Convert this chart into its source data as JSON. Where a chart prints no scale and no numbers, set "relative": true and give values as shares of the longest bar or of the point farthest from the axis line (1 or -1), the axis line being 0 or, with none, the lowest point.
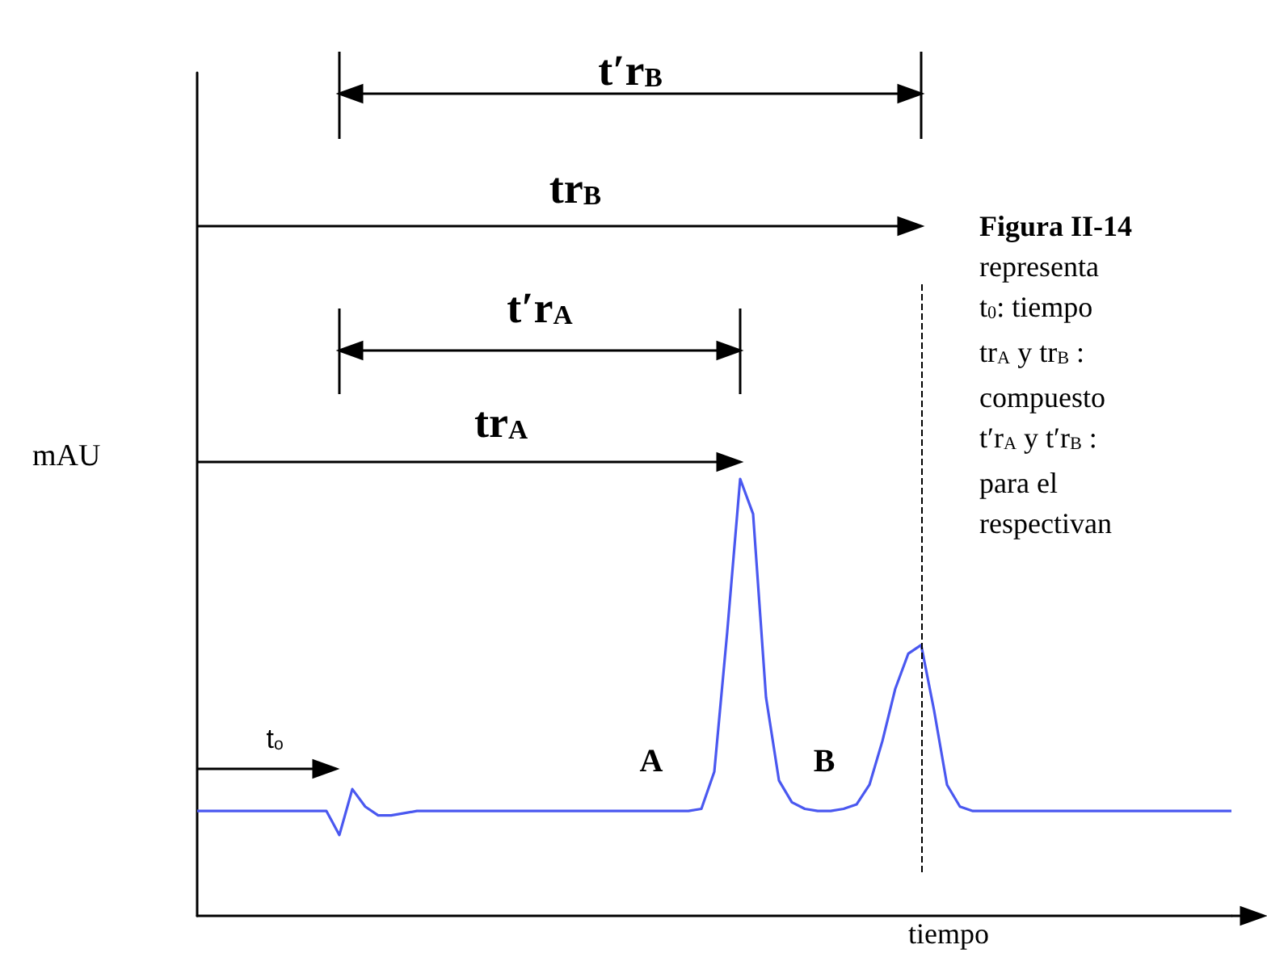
{
  "chart_data": {
    "type": "line",
    "relative": true,
    "color": "#4a58f0",
    "marker": "none",
    "line_style": "solid",
    "xlabel": "tiempo",
    "ylabel": "mAU",
    "categories": [
      null,
      null,
      null,
      null,
      null,
      null,
      null,
      null,
      null,
      null,
      null,
      null,
      null,
      null,
      null,
      null,
      null,
      null,
      null,
      null,
      null,
      null,
      null,
      null,
      null,
      null,
      null,
      null,
      null,
      null,
      null,
      null,
      null,
      null,
      null,
      null,
      null,
      null,
      null,
      null,
      null,
      null,
      null,
      null,
      null,
      null,
      null,
      null,
      null,
      null,
      null,
      null,
      null,
      null,
      null,
      null,
      null,
      null,
      null,
      null,
      null,
      null,
      null,
      null,
      null,
      null,
      null,
      null,
      null,
      null,
      null,
      null,
      null,
      null,
      null,
      null,
      null,
      null,
      null,
      null,
      null
    ],
    "values": [
      0.24,
      0.24,
      0.24,
      0.24,
      0.24,
      0.24,
      0.24,
      0.24,
      0.24,
      0.24,
      0.24,
      0.185,
      0.29,
      0.25,
      0.23,
      0.23,
      0.235,
      0.24,
      0.24,
      0.24,
      0.24,
      0.24,
      0.24,
      0.24,
      0.24,
      0.24,
      0.24,
      0.24,
      0.24,
      0.24,
      0.24,
      0.24,
      0.24,
      0.24,
      0.24,
      0.24,
      0.24,
      0.24,
      0.24,
      0.245,
      0.33,
      0.65,
      1,
      0.92,
      0.5,
      0.31,
      0.26,
      0.245,
      0.24,
      0.24,
      0.245,
      0.255,
      0.3,
      0.4,
      0.52,
      0.6,
      0.62,
      0.47,
      0.3,
      0.25,
      0.24,
      0.24,
      0.24,
      0.24,
      0.24,
      0.24,
      0.24,
      0.24,
      0.24,
      0.24,
      0.24,
      0.24,
      0.24,
      0.24,
      0.24,
      0.24,
      0.24,
      0.24,
      0.24,
      0.24,
      0.24
    ],
    "annotations": [
      "t′r$_{B}$",
      "tr$_{B}$",
      "t′r$_{A}$",
      "tr$_{A}$",
      "t$_{o}$",
      "A",
      "B",
      "Figura II-14",
      "representa",
      "t$_{0}$: tiempo",
      "tr$_{A}$ y tr$_{B}$ :",
      "compuesto",
      "t′r$_{A}$ y t′r$_{B}$ :",
      "para el",
      "respectivan"
    ]
  }
}
